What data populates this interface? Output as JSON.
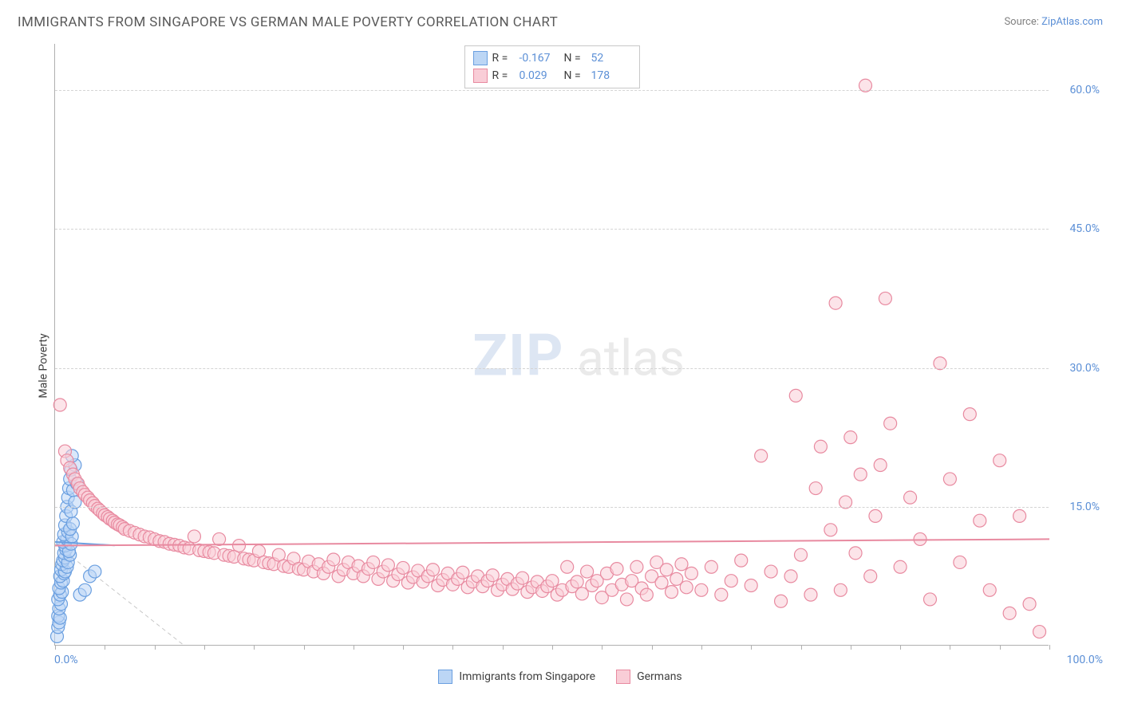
{
  "title": "IMMIGRANTS FROM SINGAPORE VS GERMAN MALE POVERTY CORRELATION CHART",
  "source_label": "Source:",
  "source_name": "ZipAtlas.com",
  "ylabel": "Male Poverty",
  "chart": {
    "type": "scatter",
    "xlim": [
      0,
      100
    ],
    "ylim": [
      0,
      65
    ],
    "xtick_label_min": "0.0%",
    "xtick_label_max": "100.0%",
    "xtick_minor_count": 20,
    "y_gridlines": [
      15,
      30,
      45,
      60
    ],
    "y_labels": [
      "15.0%",
      "30.0%",
      "45.0%",
      "60.0%"
    ],
    "background_color": "#ffffff",
    "grid_color": "#d4d4d4",
    "axis_color": "#b0b0b0",
    "tick_color": "#5b8fd6",
    "marker_radius": 8,
    "marker_stroke_width": 1.2,
    "regression_line_width": 2,
    "diag_dash_color": "#c8c8c8",
    "watermark": {
      "zip": "ZIP",
      "atlas": "atlas"
    }
  },
  "series": [
    {
      "id": "singapore",
      "label": "Immigrants from Singapore",
      "fill": "#bcd6f5",
      "stroke": "#6a9fe0",
      "fill_opacity": 0.55,
      "R_label": "R =",
      "R": "-0.167",
      "N_label": "N =",
      "N": "52",
      "reg_line": {
        "y_at_x0": 11.2,
        "y_at_x100": 5.0,
        "x_draw_end": 6
      },
      "points": [
        [
          0.2,
          1.0
        ],
        [
          0.3,
          2.0
        ],
        [
          0.4,
          2.5
        ],
        [
          0.3,
          3.2
        ],
        [
          0.5,
          3.0
        ],
        [
          0.4,
          4.0
        ],
        [
          0.6,
          4.5
        ],
        [
          0.3,
          5.0
        ],
        [
          0.5,
          5.5
        ],
        [
          0.7,
          5.8
        ],
        [
          0.4,
          6.2
        ],
        [
          0.6,
          6.8
        ],
        [
          0.8,
          7.0
        ],
        [
          0.5,
          7.5
        ],
        [
          0.9,
          7.8
        ],
        [
          0.6,
          8.2
        ],
        [
          1.0,
          8.0
        ],
        [
          0.7,
          8.8
        ],
        [
          1.2,
          8.5
        ],
        [
          0.8,
          9.2
        ],
        [
          1.0,
          9.5
        ],
        [
          1.3,
          9.0
        ],
        [
          0.9,
          10.0
        ],
        [
          1.1,
          10.4
        ],
        [
          1.5,
          9.8
        ],
        [
          1.0,
          10.8
        ],
        [
          1.4,
          10.2
        ],
        [
          0.8,
          11.2
        ],
        [
          1.2,
          11.5
        ],
        [
          1.6,
          11.0
        ],
        [
          0.9,
          12.0
        ],
        [
          1.3,
          12.3
        ],
        [
          1.7,
          11.8
        ],
        [
          1.0,
          13.0
        ],
        [
          1.5,
          12.6
        ],
        [
          1.1,
          14.0
        ],
        [
          1.8,
          13.2
        ],
        [
          1.2,
          15.0
        ],
        [
          1.6,
          14.5
        ],
        [
          1.3,
          16.0
        ],
        [
          2.0,
          15.5
        ],
        [
          1.4,
          17.0
        ],
        [
          1.8,
          16.8
        ],
        [
          1.5,
          18.0
        ],
        [
          2.2,
          17.5
        ],
        [
          1.6,
          19.0
        ],
        [
          2.0,
          19.5
        ],
        [
          1.7,
          20.5
        ],
        [
          2.5,
          5.5
        ],
        [
          3.0,
          6.0
        ],
        [
          3.5,
          7.5
        ],
        [
          4.0,
          8.0
        ]
      ]
    },
    {
      "id": "german",
      "label": "Germans",
      "fill": "#f9cdd7",
      "stroke": "#e88aa0",
      "fill_opacity": 0.55,
      "R_label": "R =",
      "R": "0.029",
      "N_label": "N =",
      "N": "178",
      "reg_line": {
        "y_at_x0": 10.8,
        "y_at_x100": 11.5,
        "x_draw_end": 100
      },
      "points": [
        [
          0.5,
          26.0
        ],
        [
          1.0,
          21.0
        ],
        [
          1.2,
          20.0
        ],
        [
          1.5,
          19.2
        ],
        [
          1.8,
          18.5
        ],
        [
          2.0,
          18.0
        ],
        [
          2.3,
          17.5
        ],
        [
          2.5,
          17.0
        ],
        [
          2.8,
          16.6
        ],
        [
          3.0,
          16.3
        ],
        [
          3.3,
          16.0
        ],
        [
          3.5,
          15.7
        ],
        [
          3.8,
          15.4
        ],
        [
          4.0,
          15.1
        ],
        [
          4.3,
          14.8
        ],
        [
          4.5,
          14.6
        ],
        [
          4.8,
          14.3
        ],
        [
          5.0,
          14.1
        ],
        [
          5.3,
          13.9
        ],
        [
          5.5,
          13.7
        ],
        [
          5.8,
          13.5
        ],
        [
          6.0,
          13.3
        ],
        [
          6.3,
          13.1
        ],
        [
          6.5,
          13.0
        ],
        [
          6.8,
          12.8
        ],
        [
          7.0,
          12.6
        ],
        [
          7.5,
          12.4
        ],
        [
          8.0,
          12.2
        ],
        [
          8.5,
          12.0
        ],
        [
          9.0,
          11.8
        ],
        [
          9.5,
          11.7
        ],
        [
          10.0,
          11.5
        ],
        [
          10.5,
          11.3
        ],
        [
          11.0,
          11.2
        ],
        [
          11.5,
          11.0
        ],
        [
          12.0,
          10.9
        ],
        [
          12.5,
          10.8
        ],
        [
          13.0,
          10.6
        ],
        [
          13.5,
          10.5
        ],
        [
          14.0,
          11.8
        ],
        [
          14.5,
          10.3
        ],
        [
          15.0,
          10.2
        ],
        [
          15.5,
          10.1
        ],
        [
          16.0,
          10.0
        ],
        [
          16.5,
          11.5
        ],
        [
          17.0,
          9.8
        ],
        [
          17.5,
          9.7
        ],
        [
          18.0,
          9.6
        ],
        [
          18.5,
          10.8
        ],
        [
          19.0,
          9.4
        ],
        [
          19.5,
          9.3
        ],
        [
          20.0,
          9.2
        ],
        [
          20.5,
          10.2
        ],
        [
          21.0,
          9.0
        ],
        [
          21.5,
          8.9
        ],
        [
          22.0,
          8.8
        ],
        [
          22.5,
          9.8
        ],
        [
          23.0,
          8.6
        ],
        [
          23.5,
          8.5
        ],
        [
          24.0,
          9.4
        ],
        [
          24.5,
          8.3
        ],
        [
          25.0,
          8.2
        ],
        [
          25.5,
          9.1
        ],
        [
          26.0,
          8.0
        ],
        [
          26.5,
          8.8
        ],
        [
          27.0,
          7.8
        ],
        [
          27.5,
          8.5
        ],
        [
          28.0,
          9.3
        ],
        [
          28.5,
          7.5
        ],
        [
          29.0,
          8.2
        ],
        [
          29.5,
          9.0
        ],
        [
          30.0,
          7.8
        ],
        [
          30.5,
          8.6
        ],
        [
          31.0,
          7.5
        ],
        [
          31.5,
          8.3
        ],
        [
          32.0,
          9.0
        ],
        [
          32.5,
          7.2
        ],
        [
          33.0,
          8.0
        ],
        [
          33.5,
          8.7
        ],
        [
          34.0,
          7.0
        ],
        [
          34.5,
          7.7
        ],
        [
          35.0,
          8.4
        ],
        [
          35.5,
          6.8
        ],
        [
          36.0,
          7.4
        ],
        [
          36.5,
          8.1
        ],
        [
          37.0,
          6.9
        ],
        [
          37.5,
          7.5
        ],
        [
          38.0,
          8.2
        ],
        [
          38.5,
          6.5
        ],
        [
          39.0,
          7.1
        ],
        [
          39.5,
          7.8
        ],
        [
          40.0,
          6.6
        ],
        [
          40.5,
          7.2
        ],
        [
          41.0,
          7.9
        ],
        [
          41.5,
          6.3
        ],
        [
          42.0,
          6.9
        ],
        [
          42.5,
          7.5
        ],
        [
          43.0,
          6.4
        ],
        [
          43.5,
          7.0
        ],
        [
          44.0,
          7.6
        ],
        [
          44.5,
          6.0
        ],
        [
          45.0,
          6.6
        ],
        [
          45.5,
          7.2
        ],
        [
          46.0,
          6.1
        ],
        [
          46.5,
          6.7
        ],
        [
          47.0,
          7.3
        ],
        [
          47.5,
          5.8
        ],
        [
          48.0,
          6.3
        ],
        [
          48.5,
          6.9
        ],
        [
          49.0,
          5.9
        ],
        [
          49.5,
          6.4
        ],
        [
          50.0,
          7.0
        ],
        [
          50.5,
          5.5
        ],
        [
          51.0,
          6.0
        ],
        [
          51.5,
          8.5
        ],
        [
          52.0,
          6.4
        ],
        [
          52.5,
          6.9
        ],
        [
          53.0,
          5.6
        ],
        [
          53.5,
          8.0
        ],
        [
          54.0,
          6.5
        ],
        [
          54.5,
          7.0
        ],
        [
          55.0,
          5.2
        ],
        [
          55.5,
          7.8
        ],
        [
          56.0,
          6.0
        ],
        [
          56.5,
          8.3
        ],
        [
          57.0,
          6.6
        ],
        [
          57.5,
          5.0
        ],
        [
          58.0,
          7.0
        ],
        [
          58.5,
          8.5
        ],
        [
          59.0,
          6.2
        ],
        [
          59.5,
          5.5
        ],
        [
          60.0,
          7.5
        ],
        [
          60.5,
          9.0
        ],
        [
          61.0,
          6.8
        ],
        [
          61.5,
          8.2
        ],
        [
          62.0,
          5.8
        ],
        [
          62.5,
          7.2
        ],
        [
          63.0,
          8.8
        ],
        [
          63.5,
          6.3
        ],
        [
          64.0,
          7.8
        ],
        [
          65.0,
          6.0
        ],
        [
          66.0,
          8.5
        ],
        [
          67.0,
          5.5
        ],
        [
          68.0,
          7.0
        ],
        [
          69.0,
          9.2
        ],
        [
          70.0,
          6.5
        ],
        [
          71.0,
          20.5
        ],
        [
          72.0,
          8.0
        ],
        [
          73.0,
          4.8
        ],
        [
          74.0,
          7.5
        ],
        [
          74.5,
          27.0
        ],
        [
          75.0,
          9.8
        ],
        [
          76.0,
          5.5
        ],
        [
          76.5,
          17.0
        ],
        [
          77.0,
          21.5
        ],
        [
          78.0,
          12.5
        ],
        [
          78.5,
          37.0
        ],
        [
          79.0,
          6.0
        ],
        [
          79.5,
          15.5
        ],
        [
          80.0,
          22.5
        ],
        [
          80.5,
          10.0
        ],
        [
          81.0,
          18.5
        ],
        [
          81.5,
          60.5
        ],
        [
          82.0,
          7.5
        ],
        [
          82.5,
          14.0
        ],
        [
          83.0,
          19.5
        ],
        [
          83.5,
          37.5
        ],
        [
          84.0,
          24.0
        ],
        [
          85.0,
          8.5
        ],
        [
          86.0,
          16.0
        ],
        [
          87.0,
          11.5
        ],
        [
          88.0,
          5.0
        ],
        [
          89.0,
          30.5
        ],
        [
          90.0,
          18.0
        ],
        [
          91.0,
          9.0
        ],
        [
          92.0,
          25.0
        ],
        [
          93.0,
          13.5
        ],
        [
          94.0,
          6.0
        ],
        [
          95.0,
          20.0
        ],
        [
          96.0,
          3.5
        ],
        [
          97.0,
          14.0
        ],
        [
          98.0,
          4.5
        ],
        [
          99.0,
          1.5
        ]
      ]
    }
  ],
  "bottom_legend": [
    {
      "swatch_fill": "#bcd6f5",
      "swatch_stroke": "#6a9fe0",
      "label": "Immigrants from Singapore"
    },
    {
      "swatch_fill": "#f9cdd7",
      "swatch_stroke": "#e88aa0",
      "label": "Germans"
    }
  ]
}
